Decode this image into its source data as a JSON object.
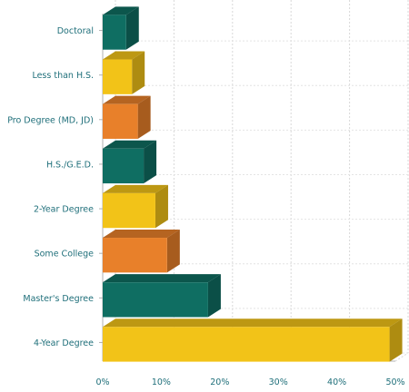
{
  "chart_data": {
    "type": "bar",
    "orientation": "horizontal",
    "style": "3d",
    "categories": [
      "Doctoral",
      "Less than H.S.",
      "Pro Degree (MD, JD)",
      "H.S./G.E.D.",
      "2-Year Degree",
      "Some College",
      "Master's Degree",
      "4-Year Degree"
    ],
    "values": [
      4,
      5,
      6,
      7,
      9,
      11,
      18,
      49
    ],
    "colors": [
      "#0f6e62",
      "#f2c318",
      "#e8802a",
      "#0f6e62",
      "#f2c318",
      "#e8802a",
      "#0f6e62",
      "#f2c318"
    ],
    "xlim": [
      0,
      50
    ],
    "x_ticks": [
      "0%",
      "10%",
      "20%",
      "30%",
      "40%",
      "50%"
    ],
    "grid": true
  }
}
